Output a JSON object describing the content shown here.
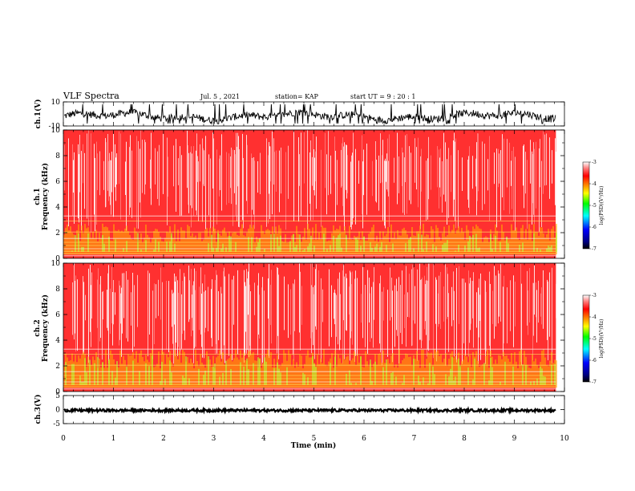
{
  "header": {
    "title": "VLF Spectra",
    "date": "Jul. 5 , 2021",
    "station": "station= KAP",
    "start": "start UT = 9 : 20 : 1"
  },
  "colors": {
    "spectrogram_low": "#000080",
    "spectrogram_mid": "#00ff00",
    "spectrogram_high": "#ff0000",
    "background": "#ffffff",
    "trace": "#000000"
  },
  "chart_data": [
    {
      "type": "line",
      "panel": "ch1-waveform",
      "ylabel": "ch.1(V)",
      "ylim": [
        -10,
        10
      ],
      "y_ticks": [
        "10",
        "-10"
      ],
      "xlim": [
        0,
        10
      ],
      "series": [
        {
          "values_range": [
            -8,
            8
          ]
        }
      ]
    },
    {
      "type": "heatmap",
      "panel": "ch1-spectrogram",
      "ylabel": "ch.1\nFrequency (kHz)",
      "ylim": [
        0,
        10
      ],
      "y_ticks": [
        "0",
        "2",
        "4",
        "6",
        "8",
        "10"
      ],
      "xlim": [
        0,
        10
      ],
      "data_end_min": 9.83,
      "colorbar": {
        "label": "log(PSD)(V²/Hz)",
        "range": [
          -7,
          -3
        ],
        "ticks": [
          "-3",
          "-4",
          "-5",
          "-6",
          "-7"
        ]
      }
    },
    {
      "type": "heatmap",
      "panel": "ch2-spectrogram",
      "ylabel": "ch.2\nFrequency (kHz)",
      "ylim": [
        0,
        10
      ],
      "y_ticks": [
        "0",
        "2",
        "4",
        "6",
        "8",
        "10"
      ],
      "xlim": [
        0,
        10
      ],
      "data_end_min": 9.83,
      "colorbar": {
        "label": "log(PSD)(V²/Hz)",
        "range": [
          -7,
          -3
        ],
        "ticks": [
          "-3",
          "-4",
          "-5",
          "-6",
          "-7"
        ]
      }
    },
    {
      "type": "line",
      "panel": "ch3-waveform",
      "ylabel": "ch.3(V)",
      "ylim": [
        -5,
        5
      ],
      "y_ticks": [
        "5",
        "0",
        "-5"
      ],
      "xlim": [
        0,
        10
      ],
      "series": [
        {
          "constant": -0.3
        }
      ]
    }
  ],
  "xaxis": {
    "label": "Time (min)",
    "ticks": [
      "0",
      "1",
      "2",
      "3",
      "4",
      "5",
      "6",
      "7",
      "8",
      "9",
      "10"
    ]
  }
}
